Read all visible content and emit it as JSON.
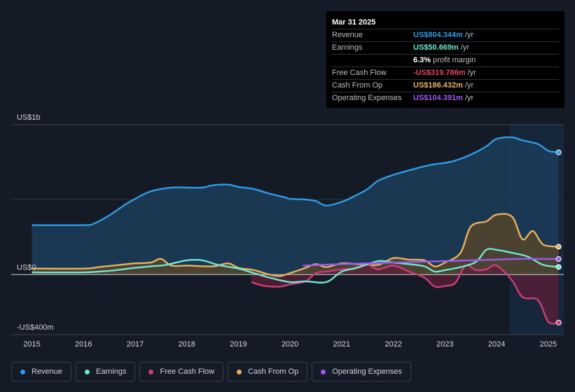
{
  "tooltip": {
    "date": "Mar 31 2025",
    "rows": [
      {
        "label": "Revenue",
        "value": "US$804.344m",
        "unit": "/yr",
        "color": "#2e9be6"
      },
      {
        "label": "Earnings",
        "value": "US$50.669m",
        "unit": "/yr",
        "color": "#6ee7d0"
      },
      {
        "label": "",
        "value": "6.3%",
        "unit": "profit margin",
        "color": "#ffffff"
      },
      {
        "label": "Free Cash Flow",
        "value": "-US$319.786m",
        "unit": "/yr",
        "color": "#e0475a"
      },
      {
        "label": "Cash From Op",
        "value": "US$186.432m",
        "unit": "/yr",
        "color": "#e8b05c"
      },
      {
        "label": "Operating Expenses",
        "value": "US$104.391m",
        "unit": "/yr",
        "color": "#9b59f0"
      }
    ]
  },
  "legend": [
    {
      "label": "Revenue",
      "color": "#2e9be6"
    },
    {
      "label": "Earnings",
      "color": "#6ee7d0"
    },
    {
      "label": "Free Cash Flow",
      "color": "#cc3d7a"
    },
    {
      "label": "Cash From Op",
      "color": "#e8b05c"
    },
    {
      "label": "Operating Expenses",
      "color": "#9b59f0"
    }
  ],
  "chart_data": {
    "type": "area",
    "title": "",
    "xlabel": "",
    "ylabel": "",
    "xlim": [
      2014.6,
      2025.3
    ],
    "ylim": [
      -400,
      1000
    ],
    "y_tick_labels": [
      {
        "value": 1000,
        "label": "US$1b"
      },
      {
        "value": 0,
        "label": "US$0"
      },
      {
        "value": -400,
        "label": "-US$400m"
      }
    ],
    "x_ticks": [
      2015,
      2016,
      2017,
      2018,
      2019,
      2020,
      2021,
      2022,
      2023,
      2024,
      2025
    ],
    "forecast_start": 2024.25,
    "series": [
      {
        "name": "Revenue",
        "color": "#2e9be6",
        "fill": "#1c3d5c",
        "x": [
          2015.0,
          2016.0,
          2016.2,
          2016.5,
          2016.8,
          2017.0,
          2017.3,
          2017.7,
          2018.0,
          2018.3,
          2018.5,
          2018.8,
          2019.0,
          2019.3,
          2019.6,
          2019.9,
          2020.0,
          2020.3,
          2020.5,
          2020.7,
          2021.0,
          2021.2,
          2021.5,
          2021.7,
          2022.0,
          2022.3,
          2022.7,
          2023.0,
          2023.2,
          2023.5,
          2023.8,
          2024.0,
          2024.3,
          2024.5,
          2024.8,
          2025.0,
          2025.2
        ],
        "values": [
          330,
          330,
          340,
          395,
          465,
          505,
          555,
          580,
          580,
          580,
          595,
          600,
          585,
          570,
          540,
          515,
          505,
          500,
          490,
          460,
          485,
          515,
          570,
          625,
          665,
          695,
          730,
          745,
          760,
          800,
          855,
          905,
          915,
          895,
          870,
          825,
          815
        ]
      },
      {
        "name": "Earnings",
        "color": "#6ee7d0",
        "x": [
          2015.0,
          2016.0,
          2016.5,
          2017.0,
          2017.3,
          2017.6,
          2018.0,
          2018.3,
          2018.6,
          2019.0,
          2019.3,
          2019.6,
          2020.0,
          2020.3,
          2020.7,
          2021.0,
          2021.3,
          2021.7,
          2022.0,
          2022.3,
          2022.6,
          2022.8,
          2023.0,
          2023.3,
          2023.6,
          2023.8,
          2024.0,
          2024.3,
          2024.6,
          2024.9,
          2025.2
        ],
        "values": [
          15,
          15,
          25,
          45,
          55,
          65,
          95,
          95,
          65,
          40,
          10,
          -20,
          -50,
          -45,
          -50,
          20,
          45,
          90,
          80,
          70,
          55,
          20,
          30,
          50,
          85,
          165,
          165,
          145,
          120,
          65,
          51
        ]
      },
      {
        "name": "Free Cash Flow",
        "color": "#cc3d7a",
        "fill": "#5c1f38",
        "x": [
          2019.25,
          2019.5,
          2019.8,
          2020.0,
          2020.3,
          2020.5,
          2020.7,
          2021.0,
          2021.2,
          2021.5,
          2021.7,
          2022.0,
          2022.3,
          2022.6,
          2022.8,
          2023.0,
          2023.2,
          2023.4,
          2023.6,
          2023.8,
          2024.0,
          2024.3,
          2024.5,
          2024.8,
          2025.0,
          2025.2
        ],
        "values": [
          -50,
          -75,
          -80,
          -65,
          -45,
          10,
          20,
          35,
          40,
          65,
          35,
          60,
          20,
          -20,
          -80,
          -75,
          -55,
          60,
          30,
          35,
          60,
          -40,
          -150,
          -170,
          -315,
          -320
        ]
      },
      {
        "name": "Cash From Op",
        "color": "#e8b05c",
        "fill": "#5c4525",
        "x": [
          2015.0,
          2016.0,
          2016.3,
          2016.7,
          2017.0,
          2017.3,
          2017.5,
          2017.7,
          2018.0,
          2018.5,
          2018.8,
          2019.0,
          2019.3,
          2019.6,
          2019.8,
          2020.0,
          2020.3,
          2020.5,
          2020.7,
          2021.0,
          2021.3,
          2021.7,
          2022.0,
          2022.3,
          2022.6,
          2022.8,
          2023.0,
          2023.3,
          2023.5,
          2023.8,
          2024.0,
          2024.3,
          2024.5,
          2024.7,
          2024.9,
          2025.2
        ],
        "values": [
          40,
          40,
          50,
          65,
          75,
          80,
          105,
          60,
          60,
          55,
          75,
          45,
          30,
          0,
          -10,
          10,
          45,
          70,
          50,
          75,
          70,
          65,
          110,
          100,
          95,
          55,
          80,
          145,
          320,
          355,
          400,
          385,
          235,
          290,
          200,
          186
        ]
      },
      {
        "name": "Operating Expenses",
        "color": "#9b59f0",
        "x": [
          2020.25,
          2021.0,
          2022.0,
          2023.0,
          2024.0,
          2024.5,
          2025.2
        ],
        "values": [
          60,
          70,
          80,
          90,
          100,
          105,
          104
        ]
      }
    ]
  }
}
